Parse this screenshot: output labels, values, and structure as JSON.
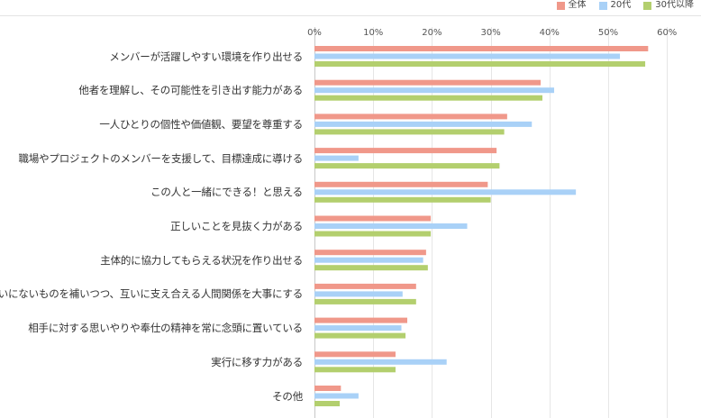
{
  "chart_data": {
    "type": "bar",
    "orientation": "horizontal",
    "title": "",
    "xlabel": "",
    "ylabel": "",
    "xlim": [
      0,
      60
    ],
    "tick_values": [
      0,
      10,
      20,
      30,
      40,
      50,
      60
    ],
    "tick_labels": [
      "0%",
      "10%",
      "20%",
      "30%",
      "40%",
      "50%",
      "60%"
    ],
    "grid": true,
    "legend_position": "top-right",
    "categories": [
      "メンバーが活躍しやすい環境を作り出せる",
      "他者を理解し、その可能性を引き出す能力がある",
      "一人ひとりの個性や価値観、要望を尊重する",
      "職場やプロジェクトのメンバーを支援して、目標達成に導ける",
      "この人と一緒にできる！と思える",
      "正しいことを見抜く力がある",
      "主体的に協力してもらえる状況を作り出せる",
      "互いにないものを補いつつ、互いに支え合える人間関係を大事にする",
      "相手に対する思いやりや奉仕の精神を常に念頭に置いている",
      "実行に移す力がある",
      "その他"
    ],
    "series": [
      {
        "name": "全体",
        "color": "#f0988a",
        "values": [
          56.8,
          38.5,
          32.8,
          31.0,
          29.5,
          19.8,
          19.0,
          17.3,
          15.8,
          13.8,
          4.5
        ]
      },
      {
        "name": "20代",
        "color": "#a9d1f7",
        "values": [
          52.0,
          40.8,
          37.0,
          7.5,
          44.5,
          26.0,
          18.5,
          15.0,
          14.8,
          22.5,
          7.5
        ]
      },
      {
        "name": "30代以降",
        "color": "#b3cf6e",
        "values": [
          56.3,
          38.8,
          32.3,
          31.5,
          30.0,
          19.8,
          19.3,
          17.3,
          15.5,
          13.8,
          4.3
        ]
      }
    ]
  }
}
